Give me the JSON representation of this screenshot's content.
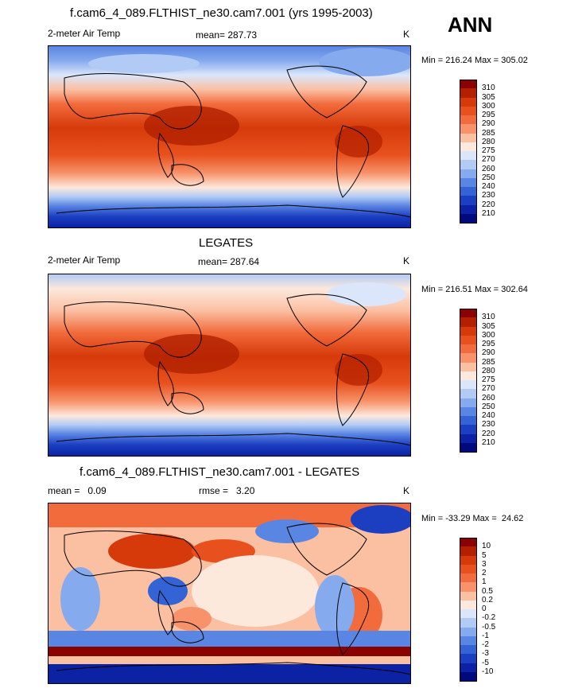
{
  "header": {
    "title": "f.cam6_4_089.FLTHIST_ne30.cam7.001 (yrs 1995-2003)",
    "season": "ANN"
  },
  "panels": [
    {
      "title": "",
      "left_label": "2-meter Air Temp",
      "center_label": "mean= 287.73",
      "unit": "K",
      "minmax": "Min = 216.24 Max = 305.02",
      "levels": [
        "310",
        "305",
        "300",
        "295",
        "290",
        "285",
        "280",
        "275",
        "270",
        "260",
        "250",
        "240",
        "230",
        "220",
        "210"
      ],
      "colors": [
        "#8b0000",
        "#b22000",
        "#d63a0a",
        "#e8511e",
        "#f26b3c",
        "#f7926a",
        "#fbbfa2",
        "#fde8dc",
        "#dbe6fb",
        "#b2cbf6",
        "#86aaee",
        "#5a86e3",
        "#3463d6",
        "#1c3fc2",
        "#0c22a4",
        "#000a7d"
      ]
    },
    {
      "title": "LEGATES",
      "left_label": "2-meter Air Temp",
      "center_label": "mean= 287.64",
      "unit": "K",
      "minmax": "Min = 216.51 Max = 302.64",
      "levels": [
        "310",
        "305",
        "300",
        "295",
        "290",
        "285",
        "280",
        "275",
        "270",
        "260",
        "250",
        "240",
        "230",
        "220",
        "210"
      ],
      "colors": [
        "#8b0000",
        "#b22000",
        "#d63a0a",
        "#e8511e",
        "#f26b3c",
        "#f7926a",
        "#fbbfa2",
        "#fde8dc",
        "#dbe6fb",
        "#b2cbf6",
        "#86aaee",
        "#5a86e3",
        "#3463d6",
        "#1c3fc2",
        "#0c22a4",
        "#000a7d"
      ]
    },
    {
      "title": "f.cam6_4_089.FLTHIST_ne30.cam7.001 - LEGATES",
      "left_label": "mean =   0.09",
      "center_label": "rmse =   3.20",
      "unit": "K",
      "minmax": "Min = -33.29 Max =  24.62",
      "levels": [
        "10",
        "5",
        "3",
        "2",
        "1",
        "0.5",
        "0.2",
        "0",
        "-0.2",
        "-0.5",
        "-1",
        "-2",
        "-3",
        "-5",
        "-10"
      ],
      "colors": [
        "#8b0000",
        "#b22000",
        "#d63a0a",
        "#e8511e",
        "#f26b3c",
        "#f7926a",
        "#fbbfa2",
        "#fde8dc",
        "#dbe6fb",
        "#b2cbf6",
        "#86aaee",
        "#5a86e3",
        "#3463d6",
        "#1c3fc2",
        "#0c22a4",
        "#000a7d"
      ]
    }
  ]
}
